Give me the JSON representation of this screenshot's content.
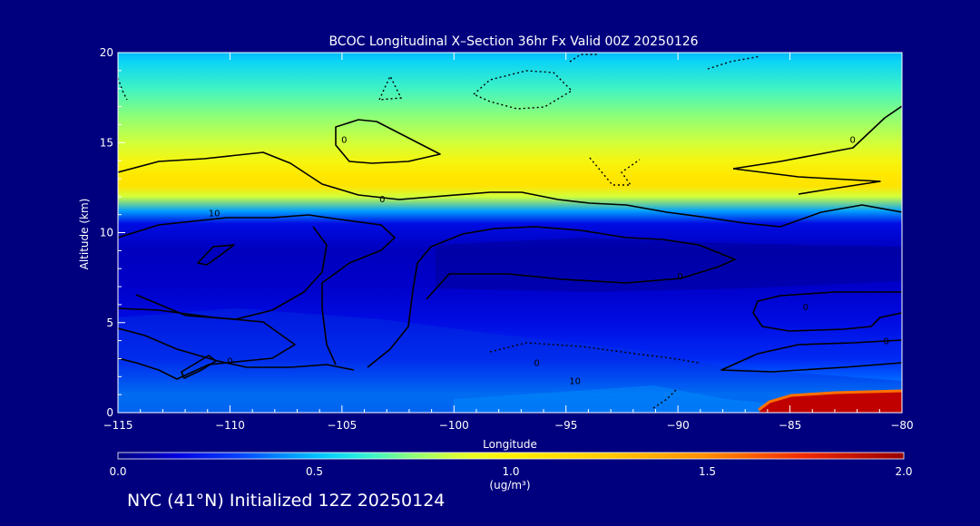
{
  "chart_data": {
    "type": "heatmap",
    "title": "BCOC Longitudinal X–Section 36hr  Fx Valid 00Z 20250126",
    "xlabel": "Longitude",
    "ylabel": "Altitude (km)",
    "xlim": [
      -115,
      -80
    ],
    "ylim": [
      0,
      20
    ],
    "x_ticks": [
      "−115",
      "−110",
      "−105",
      "−100",
      "−95",
      "−90",
      "−85",
      "−80"
    ],
    "y_ticks": [
      "0",
      "5",
      "10",
      "15",
      "20"
    ],
    "colorbar": {
      "ticks": [
        "0.0",
        "0.5",
        "1.0",
        "1.5",
        "2.0"
      ],
      "range": [
        0.0,
        2.0
      ],
      "units_line1": "1.0",
      "units_line2": "(ug/m³)"
    },
    "field_profile": [
      {
        "alt": 0.0,
        "value": 0.42
      },
      {
        "alt": 1.0,
        "value": 0.45
      },
      {
        "alt": 2.0,
        "value": 0.35
      },
      {
        "alt": 3.0,
        "value": 0.25
      },
      {
        "alt": 4.0,
        "value": 0.22
      },
      {
        "alt": 5.0,
        "value": 0.18
      },
      {
        "alt": 7.0,
        "value": 0.12
      },
      {
        "alt": 9.0,
        "value": 0.1
      },
      {
        "alt": 10.5,
        "value": 0.18
      },
      {
        "alt": 11.2,
        "value": 0.45
      },
      {
        "alt": 12.0,
        "value": 0.85
      },
      {
        "alt": 12.6,
        "value": 1.08
      },
      {
        "alt": 13.2,
        "value": 1.05
      },
      {
        "alt": 14.0,
        "value": 0.95
      },
      {
        "alt": 15.0,
        "value": 0.85
      },
      {
        "alt": 16.5,
        "value": 0.75
      },
      {
        "alt": 18.0,
        "value": 0.65
      },
      {
        "alt": 19.5,
        "value": 0.55
      },
      {
        "alt": 20.0,
        "value": 0.5
      }
    ],
    "high_region": {
      "lon_from": -86.5,
      "lon_to": -80,
      "alt_top": 1.2,
      "value": 2.0
    },
    "contour_labels": [
      {
        "text": "0",
        "lon": -103.2,
        "alt": 11.9
      },
      {
        "text": "10",
        "lon": -110.7,
        "alt": 11.1
      },
      {
        "text": "0",
        "lon": -89.9,
        "alt": 7.6
      },
      {
        "text": "0",
        "lon": -110.0,
        "alt": 2.9
      },
      {
        "text": "0",
        "lon": -84.3,
        "alt": 5.9
      },
      {
        "text": "0",
        "lon": -104.9,
        "alt": 15.2
      },
      {
        "text": "0",
        "lon": -82.2,
        "alt": 15.2
      },
      {
        "text": "0",
        "lon": -80.7,
        "alt": 4.0
      },
      {
        "text": "0",
        "lon": -96.3,
        "alt": 2.8
      },
      {
        "text": "10",
        "lon": -94.6,
        "alt": 1.8
      }
    ]
  },
  "footer": "NYC (41°N) Initialized 12Z 20250124"
}
